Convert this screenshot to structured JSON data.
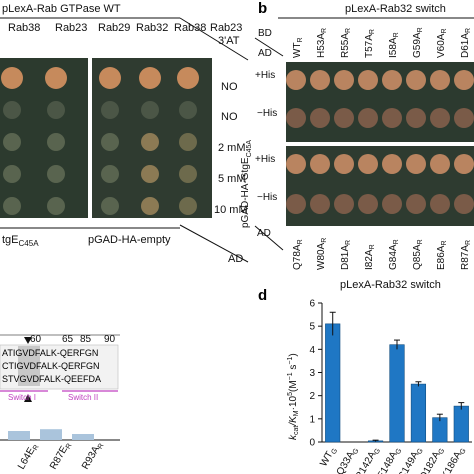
{
  "panel_a": {
    "title": "pLexA-Rab GTPase WT",
    "columns": [
      "Rab38",
      "Rab23",
      "Rab29",
      "Rab32",
      "Rab38",
      "Rab23"
    ],
    "header_right": "3'AT",
    "rows": [
      "NO",
      "NO",
      "2 mM",
      "5 mM",
      "10 mM"
    ],
    "bottom_left_prefix": "tgE",
    "bottom_left_sub": "C45A",
    "bottom_right": "pGAD-HA-empty",
    "ad": "AD"
  },
  "panel_b": {
    "letter": "b",
    "title": "pLexA-Rab32 switch",
    "bd": "BD",
    "ad_top": "AD",
    "ad_bottom": "AD",
    "top_columns": [
      {
        "main": "WT",
        "sub": "R"
      },
      {
        "main": "H53A",
        "sub": "R"
      },
      {
        "main": "R55A",
        "sub": "R"
      },
      {
        "main": "T57A",
        "sub": "R"
      },
      {
        "main": "I58A",
        "sub": "R"
      },
      {
        "main": "G59A",
        "sub": "R"
      },
      {
        "main": "V60A",
        "sub": "R"
      },
      {
        "main": "D61A",
        "sub": "R"
      }
    ],
    "bottom_columns": [
      {
        "main": "Q78A",
        "sub": "R"
      },
      {
        "main": "W80A",
        "sub": "R"
      },
      {
        "main": "D81A",
        "sub": "R"
      },
      {
        "main": "I82A",
        "sub": "R"
      },
      {
        "main": "G84A",
        "sub": "R"
      },
      {
        "main": "Q85A",
        "sub": "R"
      },
      {
        "main": "E86A",
        "sub": "R"
      },
      {
        "main": "R87A",
        "sub": "R"
      }
    ],
    "rows": [
      "+His",
      "−His",
      "+His",
      "−His"
    ],
    "side_prefix": "pGAD-HA-GtgE",
    "side_sub": "C45A"
  },
  "panel_c": {
    "ticks": [
      "60",
      "65",
      "85",
      "90"
    ],
    "seq_rows": [
      "ATIGVDFALK-QERFGN",
      "CTIGVDFALK-QERFGN",
      "STVGVDFALK-QEEFDA"
    ],
    "switch1": "Switch I",
    "switch2": "Switch II",
    "bar_labels": [
      {
        "main": "L64E",
        "sub": "R"
      },
      {
        "main": "R87E",
        "sub": "R"
      },
      {
        "main": "R93A",
        "sub": "R"
      }
    ],
    "bar_values": [
      0.15,
      0.18,
      0.1
    ]
  },
  "panel_d": {
    "letter": "d",
    "title": "pLexA-Rab32 switch",
    "y_axis_prefix": "k",
    "y_axis_rest": "/K",
    "y_axis_tail": "·10",
    "y_axis_units": "(M",
    "y_axis_units2": " s",
    "y_axis_close": ")",
    "sub_cat": "cat",
    "sub_m": "M",
    "sup_5": "5",
    "sup_m1": "−1",
    "color_bar": "#1f77c4"
  },
  "chart_data": {
    "type": "bar",
    "title": "pLexA-Rab32 switch",
    "ylabel": "kcat/KM·10^5 (M^-1 s^-1)",
    "xlabel": "",
    "ylim": [
      0,
      6
    ],
    "yticks": [
      0,
      1,
      2,
      3,
      4,
      5,
      6
    ],
    "categories": [
      "WT",
      "Q33A",
      "R142A",
      "E148A",
      "C149A",
      "D182A",
      "K186A"
    ],
    "category_subscript": "G",
    "values": [
      5.1,
      0.0,
      0.05,
      4.2,
      2.5,
      1.05,
      1.55
    ],
    "errors": [
      0.5,
      0.0,
      0.03,
      0.2,
      0.1,
      0.15,
      0.15
    ],
    "grid": false
  }
}
